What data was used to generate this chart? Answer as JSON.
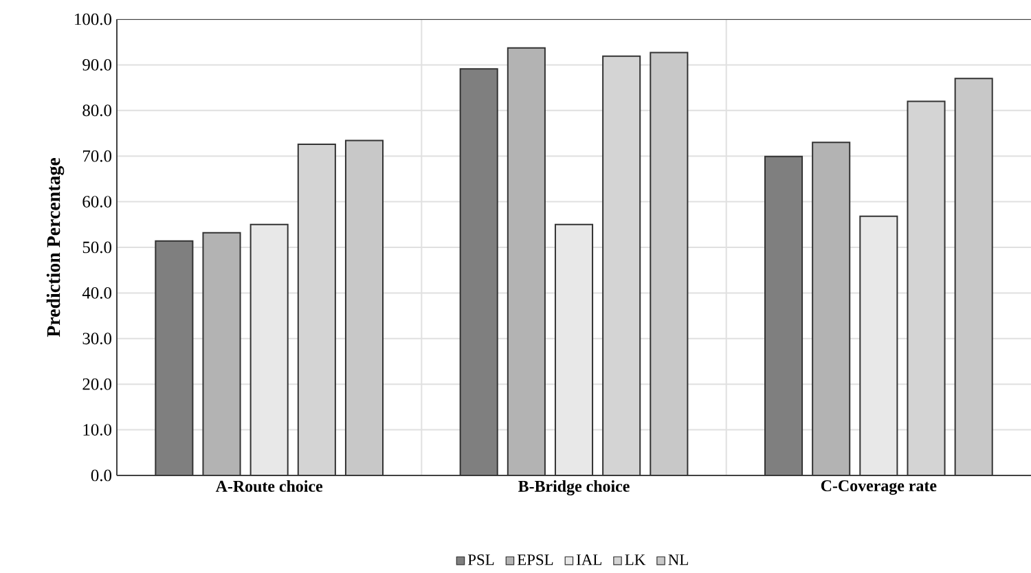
{
  "chart_data": {
    "type": "bar",
    "ylabel": "Prediction Percentage",
    "categories": [
      "A-Route choice",
      "B-Bridge choice",
      "C-Coverage rate"
    ],
    "series": [
      {
        "name": "PSL",
        "color": "#7f7f7f",
        "values": [
          51.4,
          89.1,
          69.9
        ]
      },
      {
        "name": "EPSL",
        "color": "#b3b3b3",
        "values": [
          53.2,
          93.7,
          73.0
        ]
      },
      {
        "name": "IAL",
        "color": "#e8e8e8",
        "values": [
          55.0,
          55.0,
          56.8
        ]
      },
      {
        "name": "LK",
        "color": "#d4d4d4",
        "values": [
          72.6,
          91.9,
          82.0
        ]
      },
      {
        "name": "NL",
        "color": "#c8c8c8",
        "values": [
          73.4,
          92.7,
          87.0
        ]
      }
    ],
    "ylim": [
      0,
      100
    ],
    "yticks": [
      {
        "value": 0,
        "label": "0.0"
      },
      {
        "value": 10,
        "label": "10.0"
      },
      {
        "value": 20,
        "label": "20.0"
      },
      {
        "value": 30,
        "label": "30.0"
      },
      {
        "value": 40,
        "label": "40.0"
      },
      {
        "value": 50,
        "label": "50.0"
      },
      {
        "value": 60,
        "label": "60.0"
      },
      {
        "value": 70,
        "label": "70.0"
      },
      {
        "value": 80,
        "label": "80.0"
      },
      {
        "value": 90,
        "label": "90.0"
      },
      {
        "value": 100,
        "label": "100.0"
      }
    ],
    "grid": true,
    "legend": "bottom"
  }
}
